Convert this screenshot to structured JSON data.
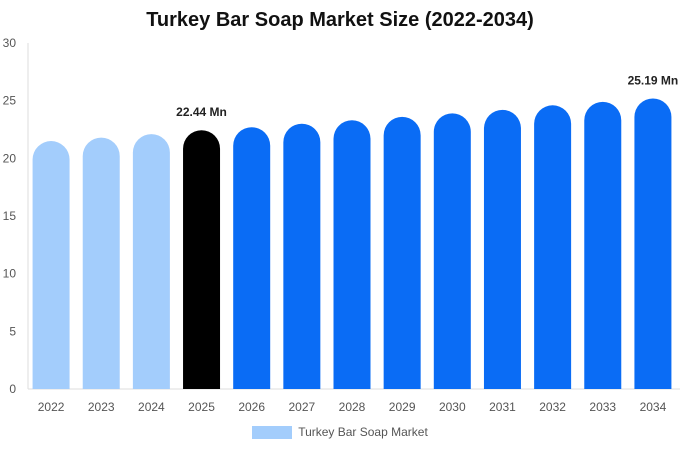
{
  "chart_data": {
    "type": "bar",
    "title": "Turkey Bar Soap Market Size (2022-2034)",
    "categories": [
      "2022",
      "2023",
      "2024",
      "2025",
      "2026",
      "2027",
      "2028",
      "2029",
      "2030",
      "2031",
      "2032",
      "2033",
      "2034"
    ],
    "series": [
      {
        "name": "Turkey Bar Soap Market",
        "values": [
          21.5,
          21.8,
          22.1,
          22.44,
          22.7,
          23.0,
          23.3,
          23.6,
          23.9,
          24.2,
          24.6,
          24.9,
          25.19
        ]
      }
    ],
    "data_labels": [
      {
        "category": "2025",
        "text": "22.44 Mn"
      },
      {
        "category": "2034",
        "text": "25.19 Mn"
      }
    ],
    "ylim": [
      0,
      30
    ],
    "yticks": [
      0,
      5,
      10,
      15,
      20,
      25,
      30
    ],
    "grid": false,
    "legend_position": "bottom",
    "colors": {
      "historic": "#a3cdfc",
      "current": "#000000",
      "forecast": "#0a6cf5",
      "legend_swatch": "#a3cdfc",
      "axis": "#dddddd"
    },
    "bar_color_groups": [
      "historic",
      "historic",
      "historic",
      "current",
      "forecast",
      "forecast",
      "forecast",
      "forecast",
      "forecast",
      "forecast",
      "forecast",
      "forecast",
      "forecast"
    ]
  }
}
